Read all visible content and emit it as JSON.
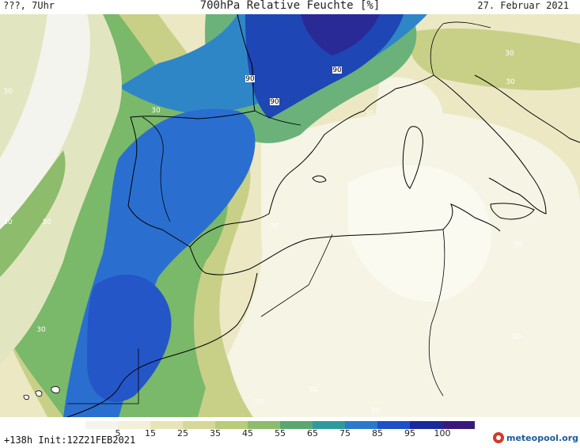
{
  "header": {
    "left": "???, 7Uhr",
    "title": "700hPa Relative Feuchte [%]",
    "right": "27. Februar 2021"
  },
  "legend": {
    "ticks": [
      "5",
      "15",
      "25",
      "35",
      "45",
      "55",
      "65",
      "75",
      "85",
      "95",
      "100"
    ],
    "colors": [
      "#f4f4ee",
      "#f2f0d8",
      "#e8e4b8",
      "#d6d89a",
      "#b8cc7a",
      "#8cbc6c",
      "#5aa870",
      "#2f9a9a",
      "#2a7acc",
      "#1e50c8",
      "#1a2a9a",
      "#3a1a78"
    ]
  },
  "footer": {
    "run_info": "+138h Init:12Z21FEB2021",
    "brand": "meteopool.org"
  },
  "contour_labels": [
    {
      "text": "90",
      "pos": [
        316,
        102
      ]
    },
    {
      "text": "90",
      "pos": [
        426,
        91
      ]
    },
    {
      "text": "90",
      "pos": [
        347,
        131
      ]
    },
    {
      "text": "30",
      "pos": [
        10,
        118
      ]
    },
    {
      "text": "30",
      "pos": [
        197,
        142
      ]
    },
    {
      "text": "30",
      "pos": [
        467,
        146
      ]
    },
    {
      "text": "30",
      "pos": [
        644,
        70
      ]
    },
    {
      "text": "30",
      "pos": [
        645,
        106
      ]
    },
    {
      "text": "30",
      "pos": [
        10,
        283
      ]
    },
    {
      "text": "30",
      "pos": [
        59,
        283
      ]
    },
    {
      "text": "30",
      "pos": [
        347,
        288
      ]
    },
    {
      "text": "30",
      "pos": [
        654,
        312
      ]
    },
    {
      "text": "30",
      "pos": [
        52,
        419
      ]
    },
    {
      "text": "30",
      "pos": [
        653,
        428
      ]
    },
    {
      "text": "30",
      "pos": [
        396,
        495
      ]
    },
    {
      "text": "30",
      "pos": [
        327,
        510
      ]
    },
    {
      "text": "30",
      "pos": [
        474,
        521
      ]
    }
  ]
}
